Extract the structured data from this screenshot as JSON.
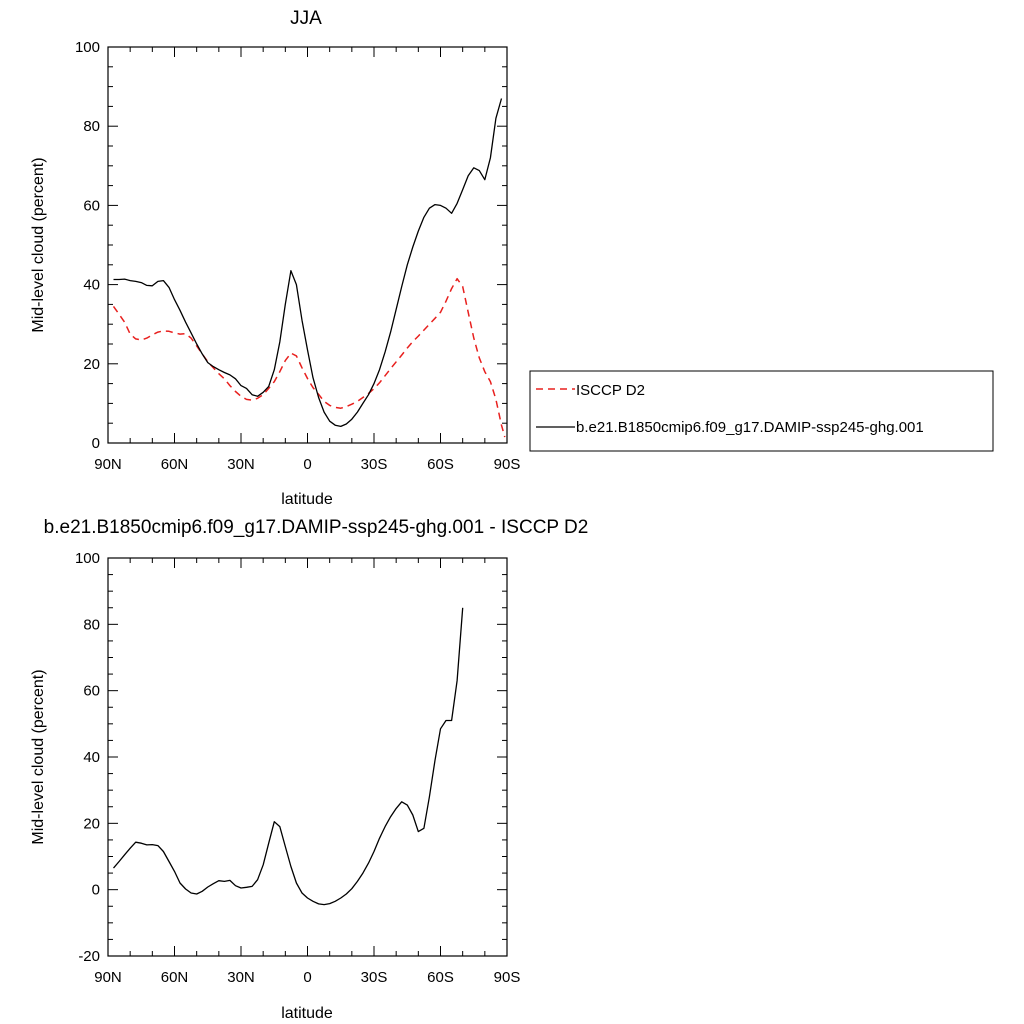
{
  "colors": {
    "obs": "#e8201e",
    "model": "#000000"
  },
  "chart_data": [
    {
      "type": "line",
      "title": "JJA",
      "xlabel": "latitude",
      "ylabel": "Mid-level cloud (percent)",
      "xlim": [
        -90,
        90
      ],
      "ylim": [
        0,
        100
      ],
      "x_ticks": [
        -90,
        -60,
        -30,
        0,
        30,
        60,
        90
      ],
      "x_tick_labels": [
        "90N",
        "60N",
        "30N",
        "0",
        "30S",
        "60S",
        "90S"
      ],
      "y_ticks": [
        0,
        20,
        40,
        60,
        80,
        100
      ],
      "y_tick_labels": [
        "0",
        "20",
        "40",
        "60",
        "80",
        "100"
      ],
      "legend_position": "right",
      "series": [
        {
          "name": "ISCCP D2",
          "style": "dashed",
          "color": "#e8201e",
          "points": [
            [
              -87.5,
              34.5
            ],
            [
              -85,
              32.5
            ],
            [
              -82.5,
              30.5
            ],
            [
              -80,
              27.5
            ],
            [
              -77.5,
              26.3
            ],
            [
              -75,
              26
            ],
            [
              -72.5,
              26.5
            ],
            [
              -70,
              27.3
            ],
            [
              -67.5,
              28
            ],
            [
              -65,
              28.3
            ],
            [
              -62.5,
              28.2
            ],
            [
              -60,
              27.8
            ],
            [
              -57.5,
              27.5
            ],
            [
              -55,
              27.6
            ],
            [
              -52.5,
              26.5
            ],
            [
              -50,
              24.5
            ],
            [
              -47.5,
              22.5
            ],
            [
              -45,
              20.5
            ],
            [
              -42.5,
              19
            ],
            [
              -40,
              17.5
            ],
            [
              -37.5,
              16.2
            ],
            [
              -35,
              14.5
            ],
            [
              -32.5,
              13
            ],
            [
              -30,
              11.8
            ],
            [
              -27.5,
              11
            ],
            [
              -25,
              10.8
            ],
            [
              -22.5,
              11.3
            ],
            [
              -20,
              12.2
            ],
            [
              -17.5,
              13.8
            ],
            [
              -15,
              15.5
            ],
            [
              -12.5,
              18
            ],
            [
              -10,
              20.8
            ],
            [
              -7.5,
              22.7
            ],
            [
              -5,
              22
            ],
            [
              -2.5,
              19
            ],
            [
              0,
              16.3
            ],
            [
              2.5,
              14
            ],
            [
              5,
              12.3
            ],
            [
              7.5,
              10.5
            ],
            [
              10,
              9.5
            ],
            [
              12.5,
              9
            ],
            [
              15,
              8.8
            ],
            [
              17.5,
              9.2
            ],
            [
              20,
              9.8
            ],
            [
              22.5,
              10.5
            ],
            [
              25,
              11.5
            ],
            [
              27.5,
              12.5
            ],
            [
              30,
              13.7
            ],
            [
              32.5,
              15.2
            ],
            [
              35,
              17
            ],
            [
              37.5,
              18.8
            ],
            [
              40,
              20.5
            ],
            [
              42.5,
              22.2
            ],
            [
              45,
              24
            ],
            [
              47.5,
              25.6
            ],
            [
              50,
              27
            ],
            [
              52.5,
              28.5
            ],
            [
              55,
              30
            ],
            [
              57.5,
              31.5
            ],
            [
              60,
              33
            ],
            [
              62.5,
              35.8
            ],
            [
              65,
              39
            ],
            [
              67.5,
              41.5
            ],
            [
              70,
              39.5
            ],
            [
              72.5,
              33
            ],
            [
              75,
              26.5
            ],
            [
              77.5,
              21.5
            ],
            [
              80,
              18
            ],
            [
              82.5,
              15.5
            ],
            [
              85,
              11
            ],
            [
              87.5,
              4.5
            ],
            [
              89,
              1.5
            ]
          ]
        },
        {
          "name": "b.e21.B1850cmip6.f09_g17.DAMIP-ssp245-ghg.001",
          "style": "solid",
          "color": "#000000",
          "points": [
            [
              -87.5,
              41.3
            ],
            [
              -85,
              41.3
            ],
            [
              -82.5,
              41.4
            ],
            [
              -80,
              41
            ],
            [
              -77.5,
              40.8
            ],
            [
              -75,
              40.5
            ],
            [
              -72.5,
              39.8
            ],
            [
              -70,
              39.7
            ],
            [
              -67.5,
              40.8
            ],
            [
              -65,
              41
            ],
            [
              -62.5,
              39.3
            ],
            [
              -60,
              36.2
            ],
            [
              -57.5,
              33.5
            ],
            [
              -55,
              30.5
            ],
            [
              -52.5,
              27.8
            ],
            [
              -50,
              25
            ],
            [
              -47.5,
              22.5
            ],
            [
              -45,
              20.3
            ],
            [
              -42.5,
              19.3
            ],
            [
              -40,
              18.5
            ],
            [
              -37.5,
              17.8
            ],
            [
              -35,
              17.2
            ],
            [
              -32.5,
              16.2
            ],
            [
              -30,
              14.5
            ],
            [
              -27.5,
              13.8
            ],
            [
              -25,
              12.2
            ],
            [
              -22.5,
              11.8
            ],
            [
              -20,
              12.8
            ],
            [
              -17.5,
              14.3
            ],
            [
              -15,
              18.5
            ],
            [
              -12.5,
              25.5
            ],
            [
              -10,
              35
            ],
            [
              -7.5,
              43.5
            ],
            [
              -5,
              40
            ],
            [
              -2.5,
              31
            ],
            [
              0,
              23.5
            ],
            [
              2.5,
              16.5
            ],
            [
              5,
              11.5
            ],
            [
              7.5,
              7.8
            ],
            [
              10,
              5.5
            ],
            [
              12.5,
              4.5
            ],
            [
              15,
              4.2
            ],
            [
              17.5,
              4.8
            ],
            [
              20,
              6
            ],
            [
              22.5,
              7.8
            ],
            [
              25,
              10
            ],
            [
              27.5,
              12.2
            ],
            [
              30,
              15
            ],
            [
              32.5,
              18.5
            ],
            [
              35,
              23
            ],
            [
              37.5,
              28
            ],
            [
              40,
              33.8
            ],
            [
              42.5,
              39.5
            ],
            [
              45,
              45
            ],
            [
              47.5,
              49.5
            ],
            [
              50,
              53.5
            ],
            [
              52.5,
              57
            ],
            [
              55,
              59.3
            ],
            [
              57.5,
              60.2
            ],
            [
              60,
              60
            ],
            [
              62.5,
              59.3
            ],
            [
              65,
              58
            ],
            [
              67.5,
              60.5
            ],
            [
              70,
              64
            ],
            [
              72.5,
              67.5
            ],
            [
              75,
              69.5
            ],
            [
              77.5,
              68.8
            ],
            [
              80,
              66.5
            ],
            [
              82.5,
              72
            ],
            [
              85,
              82
            ],
            [
              87.5,
              87
            ]
          ]
        }
      ]
    },
    {
      "type": "line",
      "title": "b.e21.B1850cmip6.f09_g17.DAMIP-ssp245-ghg.001 - ISCCP D2",
      "xlabel": "latitude",
      "ylabel": "Mid-level cloud (percent)",
      "xlim": [
        -90,
        90
      ],
      "ylim": [
        -20,
        100
      ],
      "x_ticks": [
        -90,
        -60,
        -30,
        0,
        30,
        60,
        90
      ],
      "x_tick_labels": [
        "90N",
        "60N",
        "30N",
        "0",
        "30S",
        "60S",
        "90S"
      ],
      "y_ticks": [
        -20,
        0,
        20,
        40,
        60,
        80,
        100
      ],
      "y_tick_labels": [
        "-20",
        "0",
        "20",
        "40",
        "60",
        "80",
        "100"
      ],
      "series": [
        {
          "style": "solid",
          "color": "#000000",
          "points": [
            [
              -87.5,
              6.5
            ],
            [
              -85,
              8.5
            ],
            [
              -82.5,
              10.5
            ],
            [
              -80,
              12.5
            ],
            [
              -77.5,
              14.3
            ],
            [
              -75,
              14
            ],
            [
              -72.5,
              13.5
            ],
            [
              -70,
              13.6
            ],
            [
              -67.5,
              13.3
            ],
            [
              -65,
              11.5
            ],
            [
              -62.5,
              8.5
            ],
            [
              -60,
              5.5
            ],
            [
              -57.5,
              2
            ],
            [
              -55,
              0.2
            ],
            [
              -52.5,
              -1
            ],
            [
              -50,
              -1.3
            ],
            [
              -47.5,
              -0.5
            ],
            [
              -45,
              0.8
            ],
            [
              -42.5,
              1.8
            ],
            [
              -40,
              2.7
            ],
            [
              -37.5,
              2.5
            ],
            [
              -35,
              2.8
            ],
            [
              -32.5,
              1.2
            ],
            [
              -30,
              0.5
            ],
            [
              -27.5,
              0.7
            ],
            [
              -25,
              1
            ],
            [
              -22.5,
              3
            ],
            [
              -20,
              7.5
            ],
            [
              -17.5,
              14
            ],
            [
              -15,
              20.5
            ],
            [
              -12.5,
              19
            ],
            [
              -10,
              13
            ],
            [
              -7.5,
              7
            ],
            [
              -5,
              2
            ],
            [
              -2.5,
              -1
            ],
            [
              0,
              -2.5
            ],
            [
              2.5,
              -3.5
            ],
            [
              5,
              -4.3
            ],
            [
              7.5,
              -4.5
            ],
            [
              10,
              -4.2
            ],
            [
              12.5,
              -3.5
            ],
            [
              15,
              -2.5
            ],
            [
              17.5,
              -1.3
            ],
            [
              20,
              0.3
            ],
            [
              22.5,
              2.5
            ],
            [
              25,
              5
            ],
            [
              27.5,
              8
            ],
            [
              30,
              11.5
            ],
            [
              32.5,
              15.5
            ],
            [
              35,
              19
            ],
            [
              37.5,
              22
            ],
            [
              40,
              24.5
            ],
            [
              42.5,
              26.5
            ],
            [
              45,
              25.5
            ],
            [
              47.5,
              22.5
            ],
            [
              50,
              17.5
            ],
            [
              52.5,
              18.5
            ],
            [
              55,
              28
            ],
            [
              57.5,
              39
            ],
            [
              60,
              48.5
            ],
            [
              62.5,
              51
            ],
            [
              65,
              51
            ],
            [
              67.5,
              63
            ],
            [
              70,
              85
            ]
          ]
        }
      ]
    }
  ]
}
